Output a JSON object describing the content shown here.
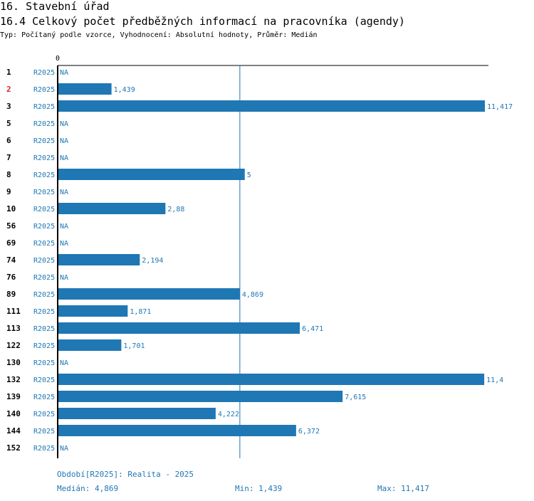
{
  "header": {
    "title": "16. Stavební úřad",
    "subtitle": "16.4 Celkový počet předběžných informací na pracovníka (agendy)",
    "info": "Typ: Počítaný podle vzorce, Vyhodnocení: Absolutní hodnoty, Průměr: Medián"
  },
  "colors": {
    "bar": "#1f77b4",
    "highlight": "#d62728",
    "text": "#000000"
  },
  "chart_data": {
    "type": "bar",
    "orientation": "horizontal",
    "axis_zero_label": "0",
    "xlim": [
      0,
      11.417
    ],
    "median": 4.869,
    "series_label": "R2025",
    "na_label": "NA",
    "highlight_category": "2",
    "rows": [
      {
        "id": "1",
        "value": null,
        "label": "NA"
      },
      {
        "id": "2",
        "value": 1.439,
        "label": "1,439"
      },
      {
        "id": "3",
        "value": 11.417,
        "label": "11,417"
      },
      {
        "id": "5",
        "value": null,
        "label": "NA"
      },
      {
        "id": "6",
        "value": null,
        "label": "NA"
      },
      {
        "id": "7",
        "value": null,
        "label": "NA"
      },
      {
        "id": "8",
        "value": 5,
        "label": "5"
      },
      {
        "id": "9",
        "value": null,
        "label": "NA"
      },
      {
        "id": "10",
        "value": 2.88,
        "label": "2,88"
      },
      {
        "id": "56",
        "value": null,
        "label": "NA"
      },
      {
        "id": "69",
        "value": null,
        "label": "NA"
      },
      {
        "id": "74",
        "value": 2.194,
        "label": "2,194"
      },
      {
        "id": "76",
        "value": null,
        "label": "NA"
      },
      {
        "id": "89",
        "value": 4.869,
        "label": "4,869"
      },
      {
        "id": "111",
        "value": 1.871,
        "label": "1,871"
      },
      {
        "id": "113",
        "value": 6.471,
        "label": "6,471"
      },
      {
        "id": "122",
        "value": 1.701,
        "label": "1,701"
      },
      {
        "id": "130",
        "value": null,
        "label": "NA"
      },
      {
        "id": "132",
        "value": 11.4,
        "label": "11,4"
      },
      {
        "id": "139",
        "value": 7.615,
        "label": "7,615"
      },
      {
        "id": "140",
        "value": 4.222,
        "label": "4,222"
      },
      {
        "id": "144",
        "value": 6.372,
        "label": "6,372"
      },
      {
        "id": "152",
        "value": null,
        "label": "NA"
      }
    ]
  },
  "footer": {
    "period": "Období[R2025]: Realita - 2025",
    "median": "Medián: 4,869",
    "min": "Min: 1,439",
    "max": "Max: 11,417"
  }
}
